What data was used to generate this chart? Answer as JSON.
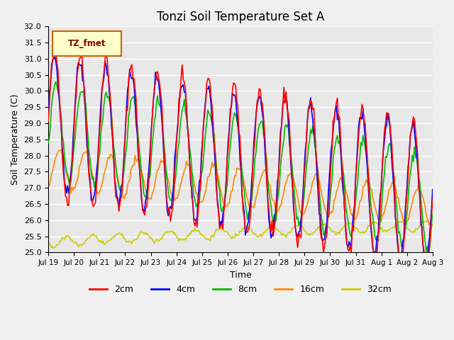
{
  "title": "Tonzi Soil Temperature Set A",
  "xlabel": "Time",
  "ylabel": "Soil Temperature (C)",
  "ylim": [
    25.0,
    32.0
  ],
  "yticks": [
    25.0,
    25.5,
    26.0,
    26.5,
    27.0,
    27.5,
    28.0,
    28.5,
    29.0,
    29.5,
    30.0,
    30.5,
    31.0,
    31.5,
    32.0
  ],
  "xtick_labels": [
    "Jul 19",
    "Jul 20",
    "Jul 21",
    "Jul 22",
    "Jul 23",
    "Jul 24",
    "Jul 25",
    "Jul 26",
    "Jul 27",
    "Jul 28",
    "Jul 29",
    "Jul 30",
    "Jul 31",
    "Aug 1",
    "Aug 2",
    "Aug 3"
  ],
  "legend_label": "TZ_fmet",
  "legend_bg": "#ffffcc",
  "legend_border": "#cc6600",
  "series_labels": [
    "2cm",
    "4cm",
    "8cm",
    "16cm",
    "32cm"
  ],
  "series_colors": [
    "#ff0000",
    "#0000ff",
    "#00bb00",
    "#ff8800",
    "#cccc00"
  ],
  "n_points": 360,
  "background_color": "#e8e8e8",
  "plot_bg": "#e8e8e8",
  "grid_color": "#ffffff",
  "linewidth": 1.2
}
